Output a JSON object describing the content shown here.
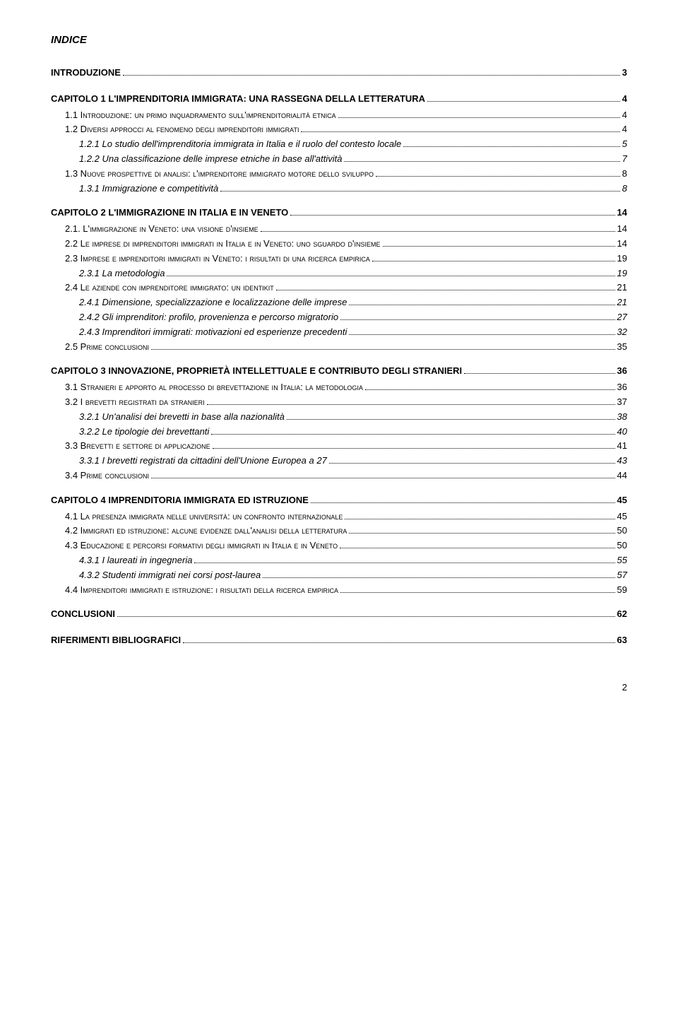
{
  "title": "INDICE",
  "page_number": "2",
  "toc": [
    {
      "level": 1,
      "label": "INTRODUZIONE",
      "page": "3"
    },
    {
      "level": 1,
      "label": "CAPITOLO 1 L'IMPRENDITORIA IMMIGRATA: UNA RASSEGNA DELLA LETTERATURA",
      "page": "4"
    },
    {
      "level": 2,
      "label": "1.1   Introduzione: un primo inquadramento sull'imprenditorialità etnica",
      "page": "4"
    },
    {
      "level": 2,
      "label": "1.2   Diversi approcci al fenomeno degli imprenditori immigrati",
      "page": "4"
    },
    {
      "level": 3,
      "label": "1.2.1   Lo studio dell'imprenditoria immigrata in Italia e il ruolo del contesto locale",
      "page": "5"
    },
    {
      "level": 3,
      "label": "1.2.2   Una classificazione delle imprese etniche in base all'attività",
      "page": "7"
    },
    {
      "level": 2,
      "label": "1.3   Nuove prospettive di analisi: l'imprenditore immigrato motore dello sviluppo",
      "page": "8"
    },
    {
      "level": 3,
      "label": "1.3.1   Immigrazione e competitività",
      "page": "8"
    },
    {
      "level": 1,
      "label": "CAPITOLO 2 L'IMMIGRAZIONE IN ITALIA E IN VENETO",
      "page": "14"
    },
    {
      "level": 2,
      "label": "2.1.   L'immigrazione in Veneto: una visione d'insieme",
      "page": "14"
    },
    {
      "level": 2,
      "label": "2.2   Le imprese di imprenditori immigrati in Italia e in Veneto: uno sguardo d'insieme",
      "page": "14"
    },
    {
      "level": 2,
      "label": "2.3   Imprese e imprenditori immigrati in Veneto: i risultati di una ricerca empirica",
      "page": "19"
    },
    {
      "level": 3,
      "label": "2.3.1   La metodologia",
      "page": "19"
    },
    {
      "level": 2,
      "label": "2.4   Le aziende con imprenditore immigrato: un identikit",
      "page": "21"
    },
    {
      "level": 3,
      "label": "2.4.1   Dimensione, specializzazione e localizzazione delle imprese",
      "page": "21"
    },
    {
      "level": 3,
      "label": "2.4.2   Gli imprenditori: profilo, provenienza e percorso migratorio",
      "page": "27"
    },
    {
      "level": 3,
      "label": "2.4.3   Imprenditori immigrati: motivazioni ed esperienze precedenti",
      "page": "32"
    },
    {
      "level": 2,
      "label": "2.5   Prime conclusioni",
      "page": "35"
    },
    {
      "level": 1,
      "label": "CAPITOLO 3 INNOVAZIONE, PROPRIETÀ INTELLETTUALE E CONTRIBUTO DEGLI STRANIERI",
      "page": "36"
    },
    {
      "level": 2,
      "label": "3.1   Stranieri e apporto al processo di brevettazione in Italia: la metodologia",
      "page": "36"
    },
    {
      "level": 2,
      "label": "3.2   I brevetti registrati da stranieri",
      "page": "37"
    },
    {
      "level": 3,
      "label": "3.2.1   Un'analisi dei brevetti in base alla nazionalità",
      "page": "38"
    },
    {
      "level": 3,
      "label": "3.2.2   Le tipologie dei brevettanti",
      "page": "40"
    },
    {
      "level": 2,
      "label": "3.3   Brevetti e settore di applicazione",
      "page": "41"
    },
    {
      "level": 3,
      "label": "3.3.1   I brevetti registrati da cittadini dell'Unione Europea a 27",
      "page": "43"
    },
    {
      "level": 2,
      "label": "3.4   Prime conclusioni",
      "page": "44"
    },
    {
      "level": 1,
      "label": "CAPITOLO 4 IMPRENDITORIA IMMIGRATA ED ISTRUZIONE",
      "page": "45"
    },
    {
      "level": 2,
      "label": "4.1   La presenza immigrata nelle università: un confronto internazionale",
      "page": "45"
    },
    {
      "level": 2,
      "label": "4.2   Immigrati ed istruzione: alcune evidenze dall'analisi della letteratura",
      "page": "50"
    },
    {
      "level": 2,
      "label": "4.3   Educazione e percorsi formativi degli immigrati in Italia e in Veneto",
      "page": "50"
    },
    {
      "level": 3,
      "label": "4.3.1   I laureati in ingegneria",
      "page": "55"
    },
    {
      "level": 3,
      "label": "4.3.2   Studenti immigrati nei corsi post-laurea",
      "page": "57"
    },
    {
      "level": 2,
      "label": "4.4   Imprenditori immigrati e istruzione: i risultati della ricerca empirica",
      "page": "59"
    },
    {
      "level": 1,
      "label": "CONCLUSIONI",
      "page": "62"
    },
    {
      "level": 1,
      "label": "RIFERIMENTI BIBLIOGRAFICI",
      "page": "63"
    }
  ]
}
